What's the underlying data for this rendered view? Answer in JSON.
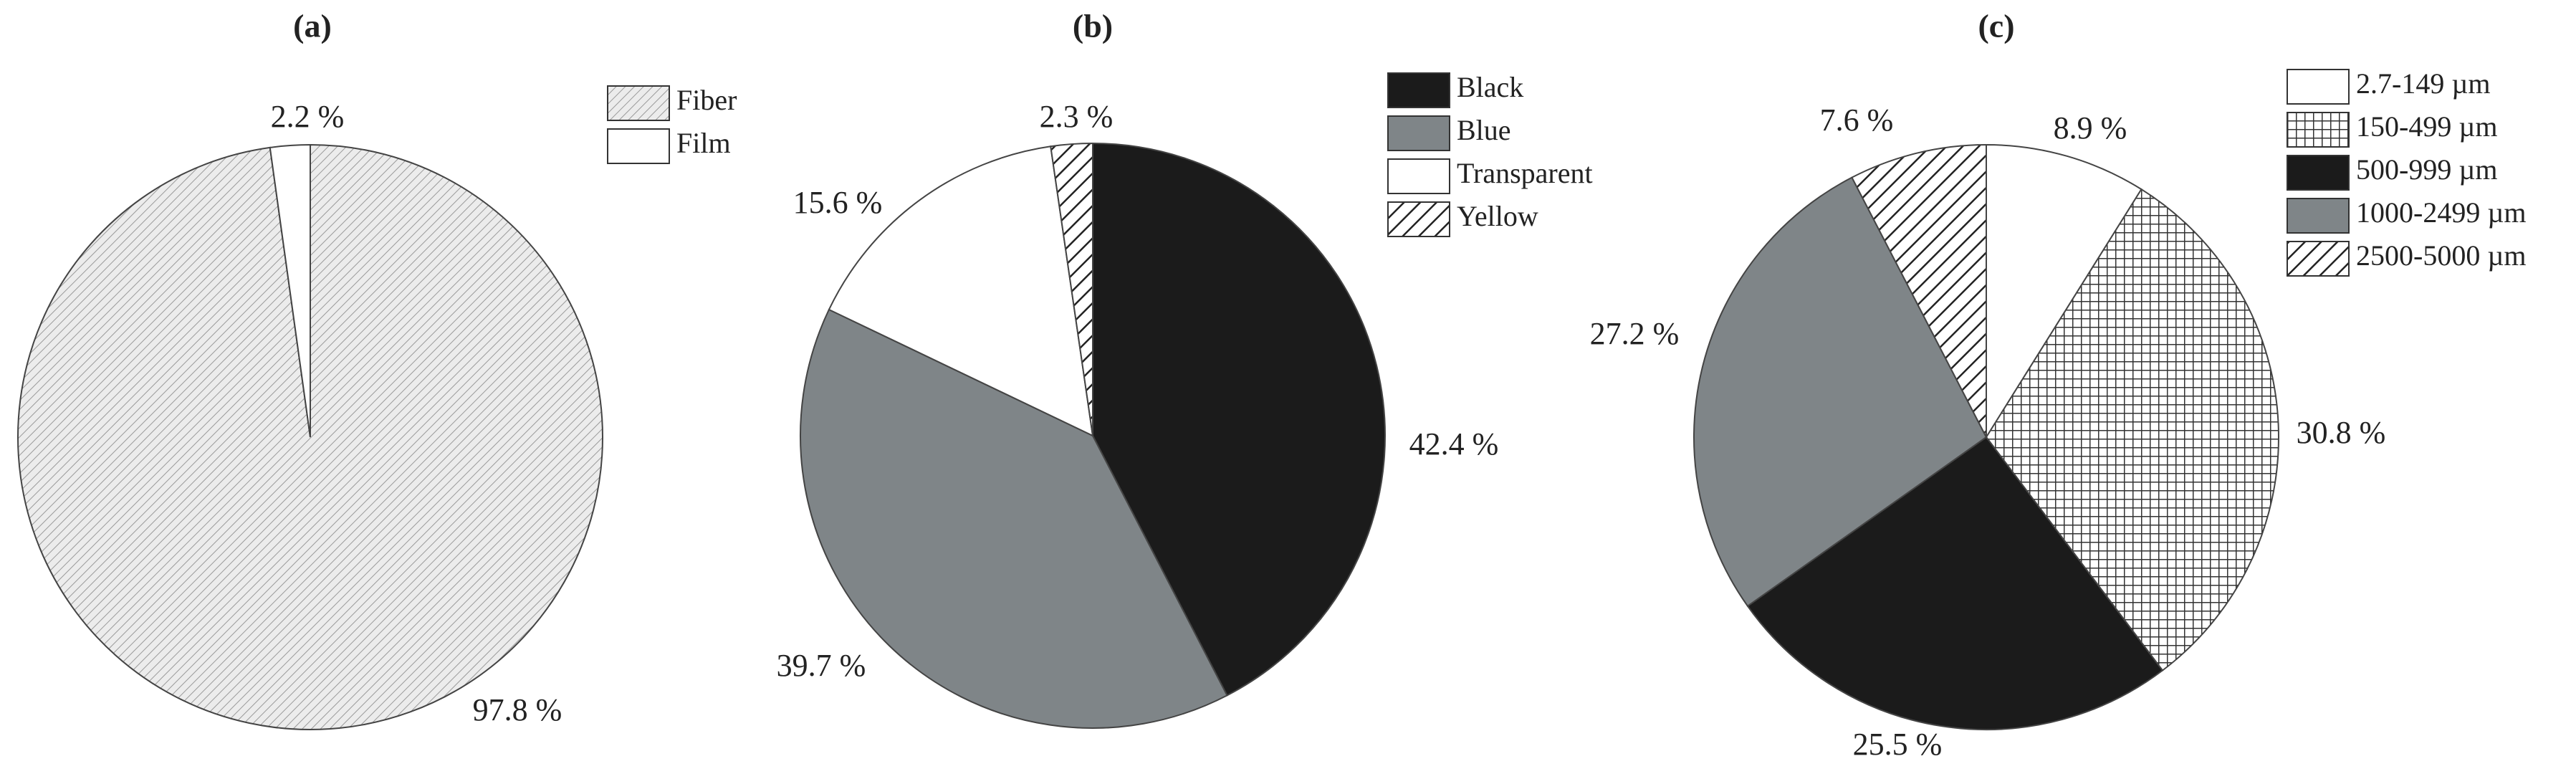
{
  "chart_data": [
    {
      "type": "pie",
      "title": "(a)",
      "categories": [
        "Fiber",
        "Film"
      ],
      "values": [
        97.8,
        2.2
      ],
      "value_labels": [
        "97.8 %",
        "2.2 %"
      ],
      "fills": [
        "hatch-light",
        "white"
      ],
      "legend": "right"
    },
    {
      "type": "pie",
      "title": "(b)",
      "categories": [
        "Black",
        "Blue",
        "Transparent",
        "Yellow"
      ],
      "values": [
        42.4,
        39.7,
        15.6,
        2.3
      ],
      "value_labels": [
        "42.4 %",
        "39.7 %",
        "15.6 %",
        "2.3 %"
      ],
      "fills": [
        "black",
        "gray",
        "white",
        "hatch"
      ],
      "legend": "right"
    },
    {
      "type": "pie",
      "title": "(c)",
      "categories": [
        "2.7-149 µm",
        "150-499 µm",
        "500-999 µm",
        "1000-2499 µm",
        "2500-5000 µm"
      ],
      "values": [
        8.9,
        30.8,
        25.5,
        27.2,
        7.6
      ],
      "value_labels": [
        "8.9 %",
        "30.8 %",
        "25.5 %",
        "27.2 %",
        "7.6 %"
      ],
      "fills": [
        "white",
        "grid",
        "black",
        "gray",
        "hatch"
      ],
      "legend": "right"
    }
  ]
}
